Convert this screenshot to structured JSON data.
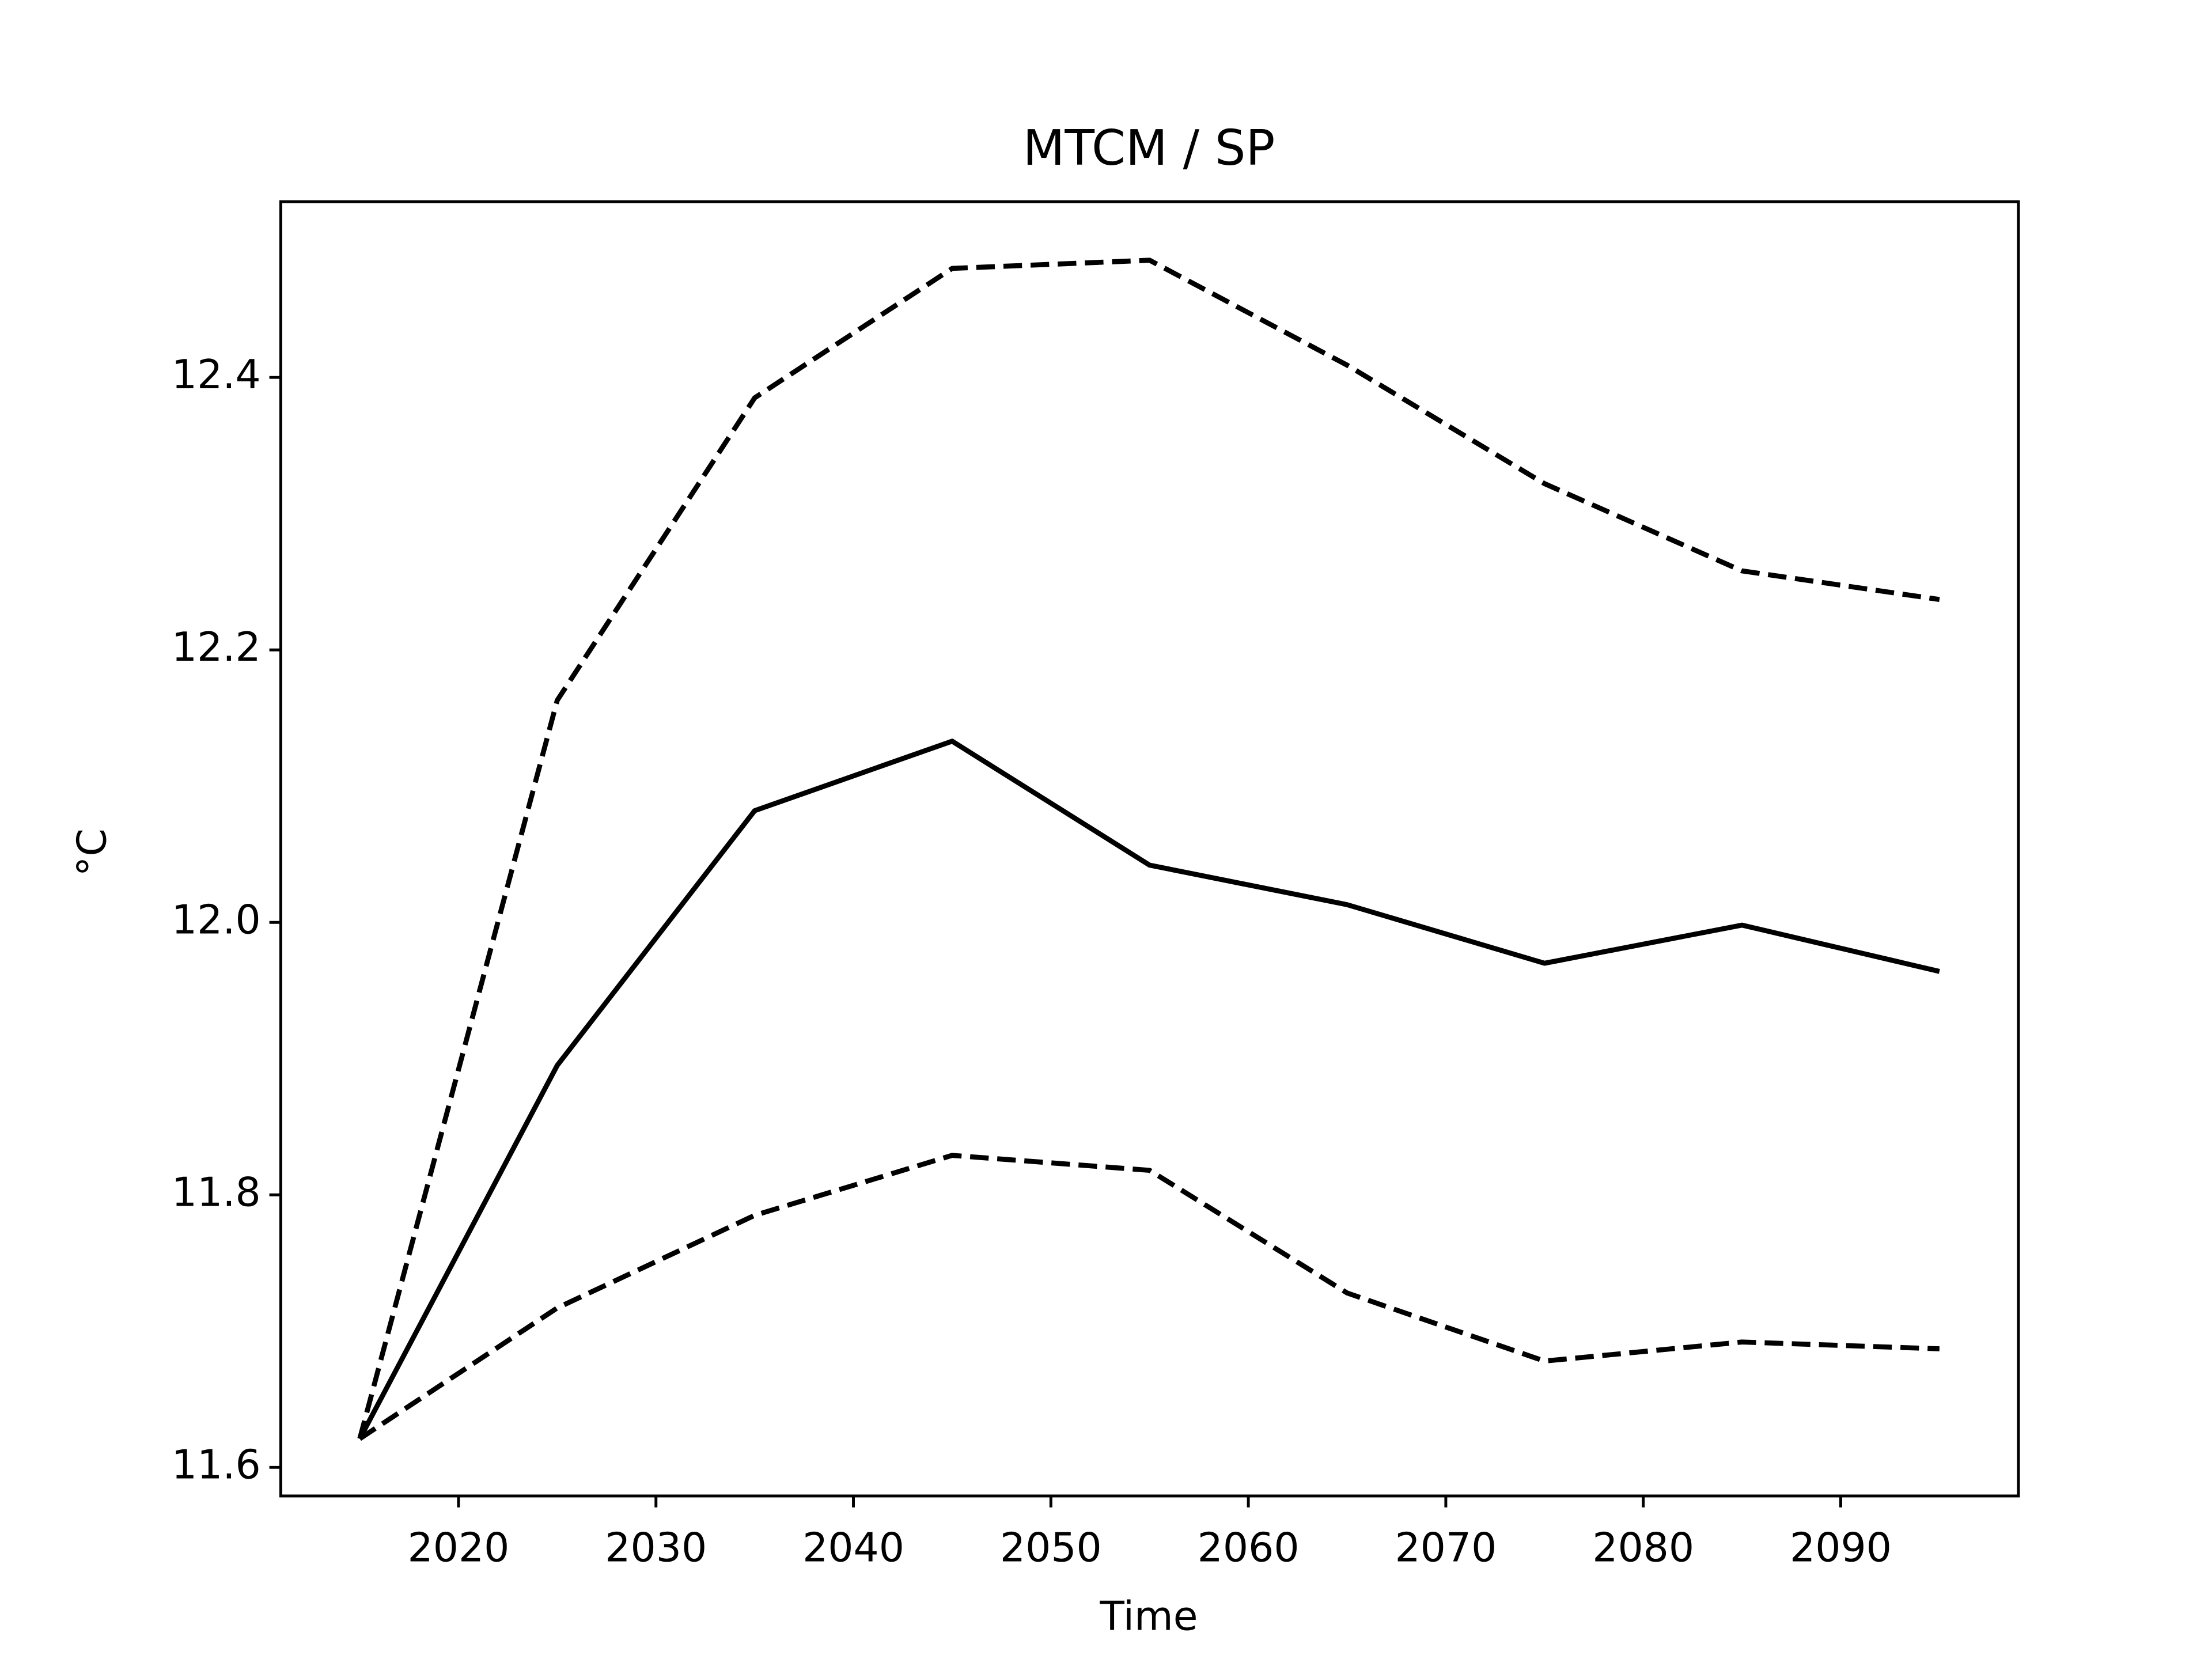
{
  "chart_data": {
    "type": "line",
    "title": "MTCM / SP",
    "x_label": "Time",
    "y_label": "°C",
    "x": [
      2015,
      2025,
      2035,
      2045,
      2055,
      2065,
      2075,
      2085,
      2095
    ],
    "series": [
      {
        "color": "#000000",
        "linestyle": "solid",
        "values": [
          11.621,
          11.895,
          12.082,
          12.133,
          12.042,
          12.013,
          11.97,
          11.998,
          11.964
        ]
      },
      {
        "color": "#000000",
        "linestyle": "dashed",
        "values": [
          11.621,
          12.163,
          12.385,
          12.48,
          12.486,
          12.409,
          12.322,
          12.258,
          12.237
        ]
      },
      {
        "color": "#000000",
        "linestyle": "dashed",
        "values": [
          11.621,
          11.717,
          11.785,
          11.829,
          11.818,
          11.728,
          11.678,
          11.692,
          11.687
        ]
      }
    ],
    "xlim": [
      2011,
      2099
    ],
    "xticks": [
      2020,
      2030,
      2040,
      2050,
      2060,
      2070,
      2080,
      2090
    ],
    "ylim": [
      11.579,
      12.529
    ],
    "yticks": [
      {
        "value": 11.6,
        "label": "11.6"
      },
      {
        "value": 11.8,
        "label": "11.8"
      },
      {
        "value": 12.0,
        "label": "12.0"
      },
      {
        "value": 12.2,
        "label": "12.2"
      },
      {
        "value": 12.4,
        "label": "12.4"
      }
    ],
    "grid": false
  }
}
